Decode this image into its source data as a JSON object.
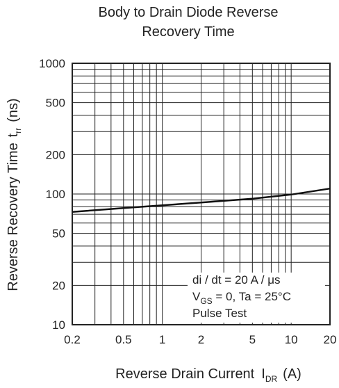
{
  "chart_data": {
    "type": "line",
    "title_lines": [
      "Body to Drain Diode Reverse",
      "Recovery Time"
    ],
    "xlabel": "Reverse Drain Current",
    "xlabel_symbol": "I",
    "xlabel_sub": "DR",
    "xlabel_unit": "(A)",
    "ylabel": "Reverse Recovery Time",
    "ylabel_symbol": "t",
    "ylabel_sub": "rr",
    "ylabel_unit": "(ns)",
    "x_scale": "log",
    "y_scale": "log",
    "xlim": [
      0.2,
      20
    ],
    "ylim": [
      10,
      1000
    ],
    "x_ticks": [
      0.2,
      0.5,
      1,
      2,
      5,
      10,
      20
    ],
    "x_tick_labels": [
      "0.2",
      "0.5",
      "1",
      "2",
      "5",
      "10",
      "20"
    ],
    "y_ticks": [
      10,
      20,
      50,
      100,
      200,
      500,
      1000
    ],
    "y_tick_labels": [
      "10",
      "20",
      "50",
      "100",
      "200",
      "500",
      "1000"
    ],
    "x_grid": [
      0.3,
      0.4,
      0.5,
      0.6,
      0.7,
      0.8,
      0.9,
      1,
      2,
      3,
      4,
      5,
      6,
      7,
      8,
      9,
      10
    ],
    "y_grid": [
      20,
      30,
      40,
      50,
      60,
      70,
      80,
      90,
      100,
      200,
      300,
      400,
      500,
      600,
      700,
      800,
      900
    ],
    "grid": true,
    "series": [
      {
        "x": [
          0.2,
          0.5,
          1,
          2,
          5,
          10,
          20
        ],
        "y": [
          73,
          78,
          82,
          86,
          92,
          99,
          110
        ]
      }
    ],
    "annotation": {
      "line1": "di / dt = 20 A / μs",
      "line2_symbol": "V",
      "line2_sub": "GS",
      "line2_rest": " = 0, Ta = 25°C",
      "line3": "Pulse Test"
    }
  },
  "colors": {
    "axis": "#222222",
    "grid": "#222222",
    "curve": "#111111",
    "background": "#ffffff"
  }
}
